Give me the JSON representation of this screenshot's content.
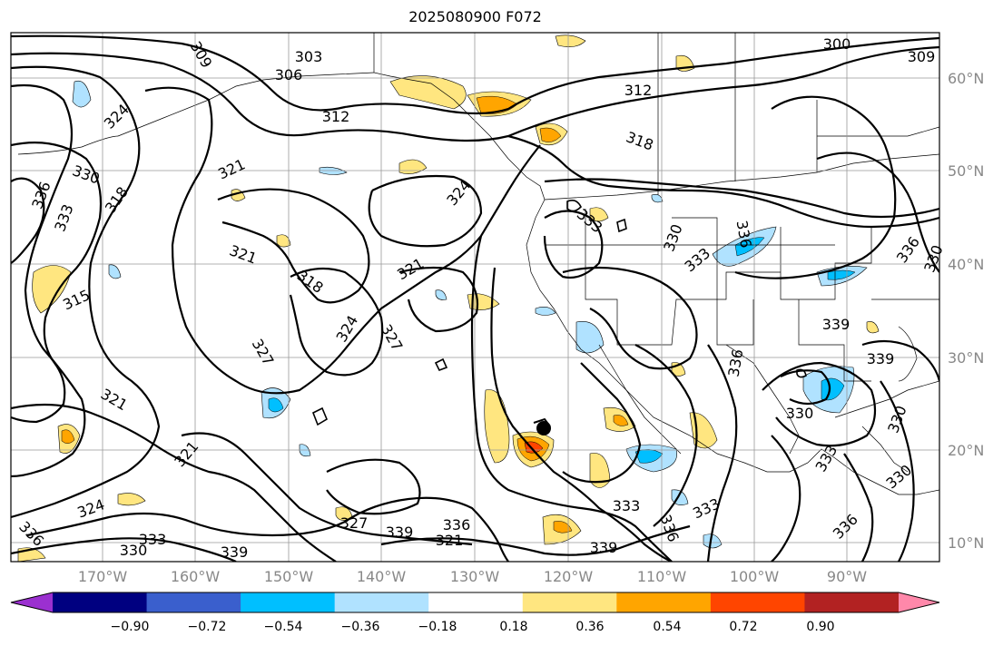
{
  "title": "2025080900 F072",
  "latitude_labels": [
    "60°N",
    "50°N",
    "40°N",
    "30°N",
    "20°N",
    "10°N"
  ],
  "longitude_labels": [
    "170°W",
    "160°W",
    "150°W",
    "140°W",
    "130°W",
    "120°W",
    "110°W",
    "100°W",
    "90°W"
  ],
  "colorbar": {
    "tick_labels": [
      "−0.90",
      "−0.72",
      "−0.54",
      "−0.36",
      "−0.18",
      "0.18",
      "0.36",
      "0.54",
      "0.72",
      "0.90"
    ],
    "colors": [
      "#9b30d0",
      "#000080",
      "#3a5fcd",
      "#00bfff",
      "#b0e2ff",
      "#ffffff",
      "#ffe680",
      "#ffa500",
      "#ff4500",
      "#b22222",
      "#ff88aa"
    ]
  },
  "contour_labels": [
    "309",
    "306",
    "303",
    "300",
    "309",
    "312",
    "318",
    "324",
    "330",
    "336",
    "333",
    "318",
    "321",
    "312",
    "324",
    "321",
    "318",
    "321",
    "315",
    "327",
    "324",
    "321",
    "327",
    "321",
    "333",
    "330",
    "336",
    "333",
    "336",
    "339",
    "330",
    "321",
    "324",
    "327",
    "339",
    "336",
    "330",
    "333",
    "336",
    "339",
    "333",
    "336",
    "339",
    "333",
    "330",
    "336",
    "333",
    "330",
    "339",
    "336",
    "330"
  ]
}
